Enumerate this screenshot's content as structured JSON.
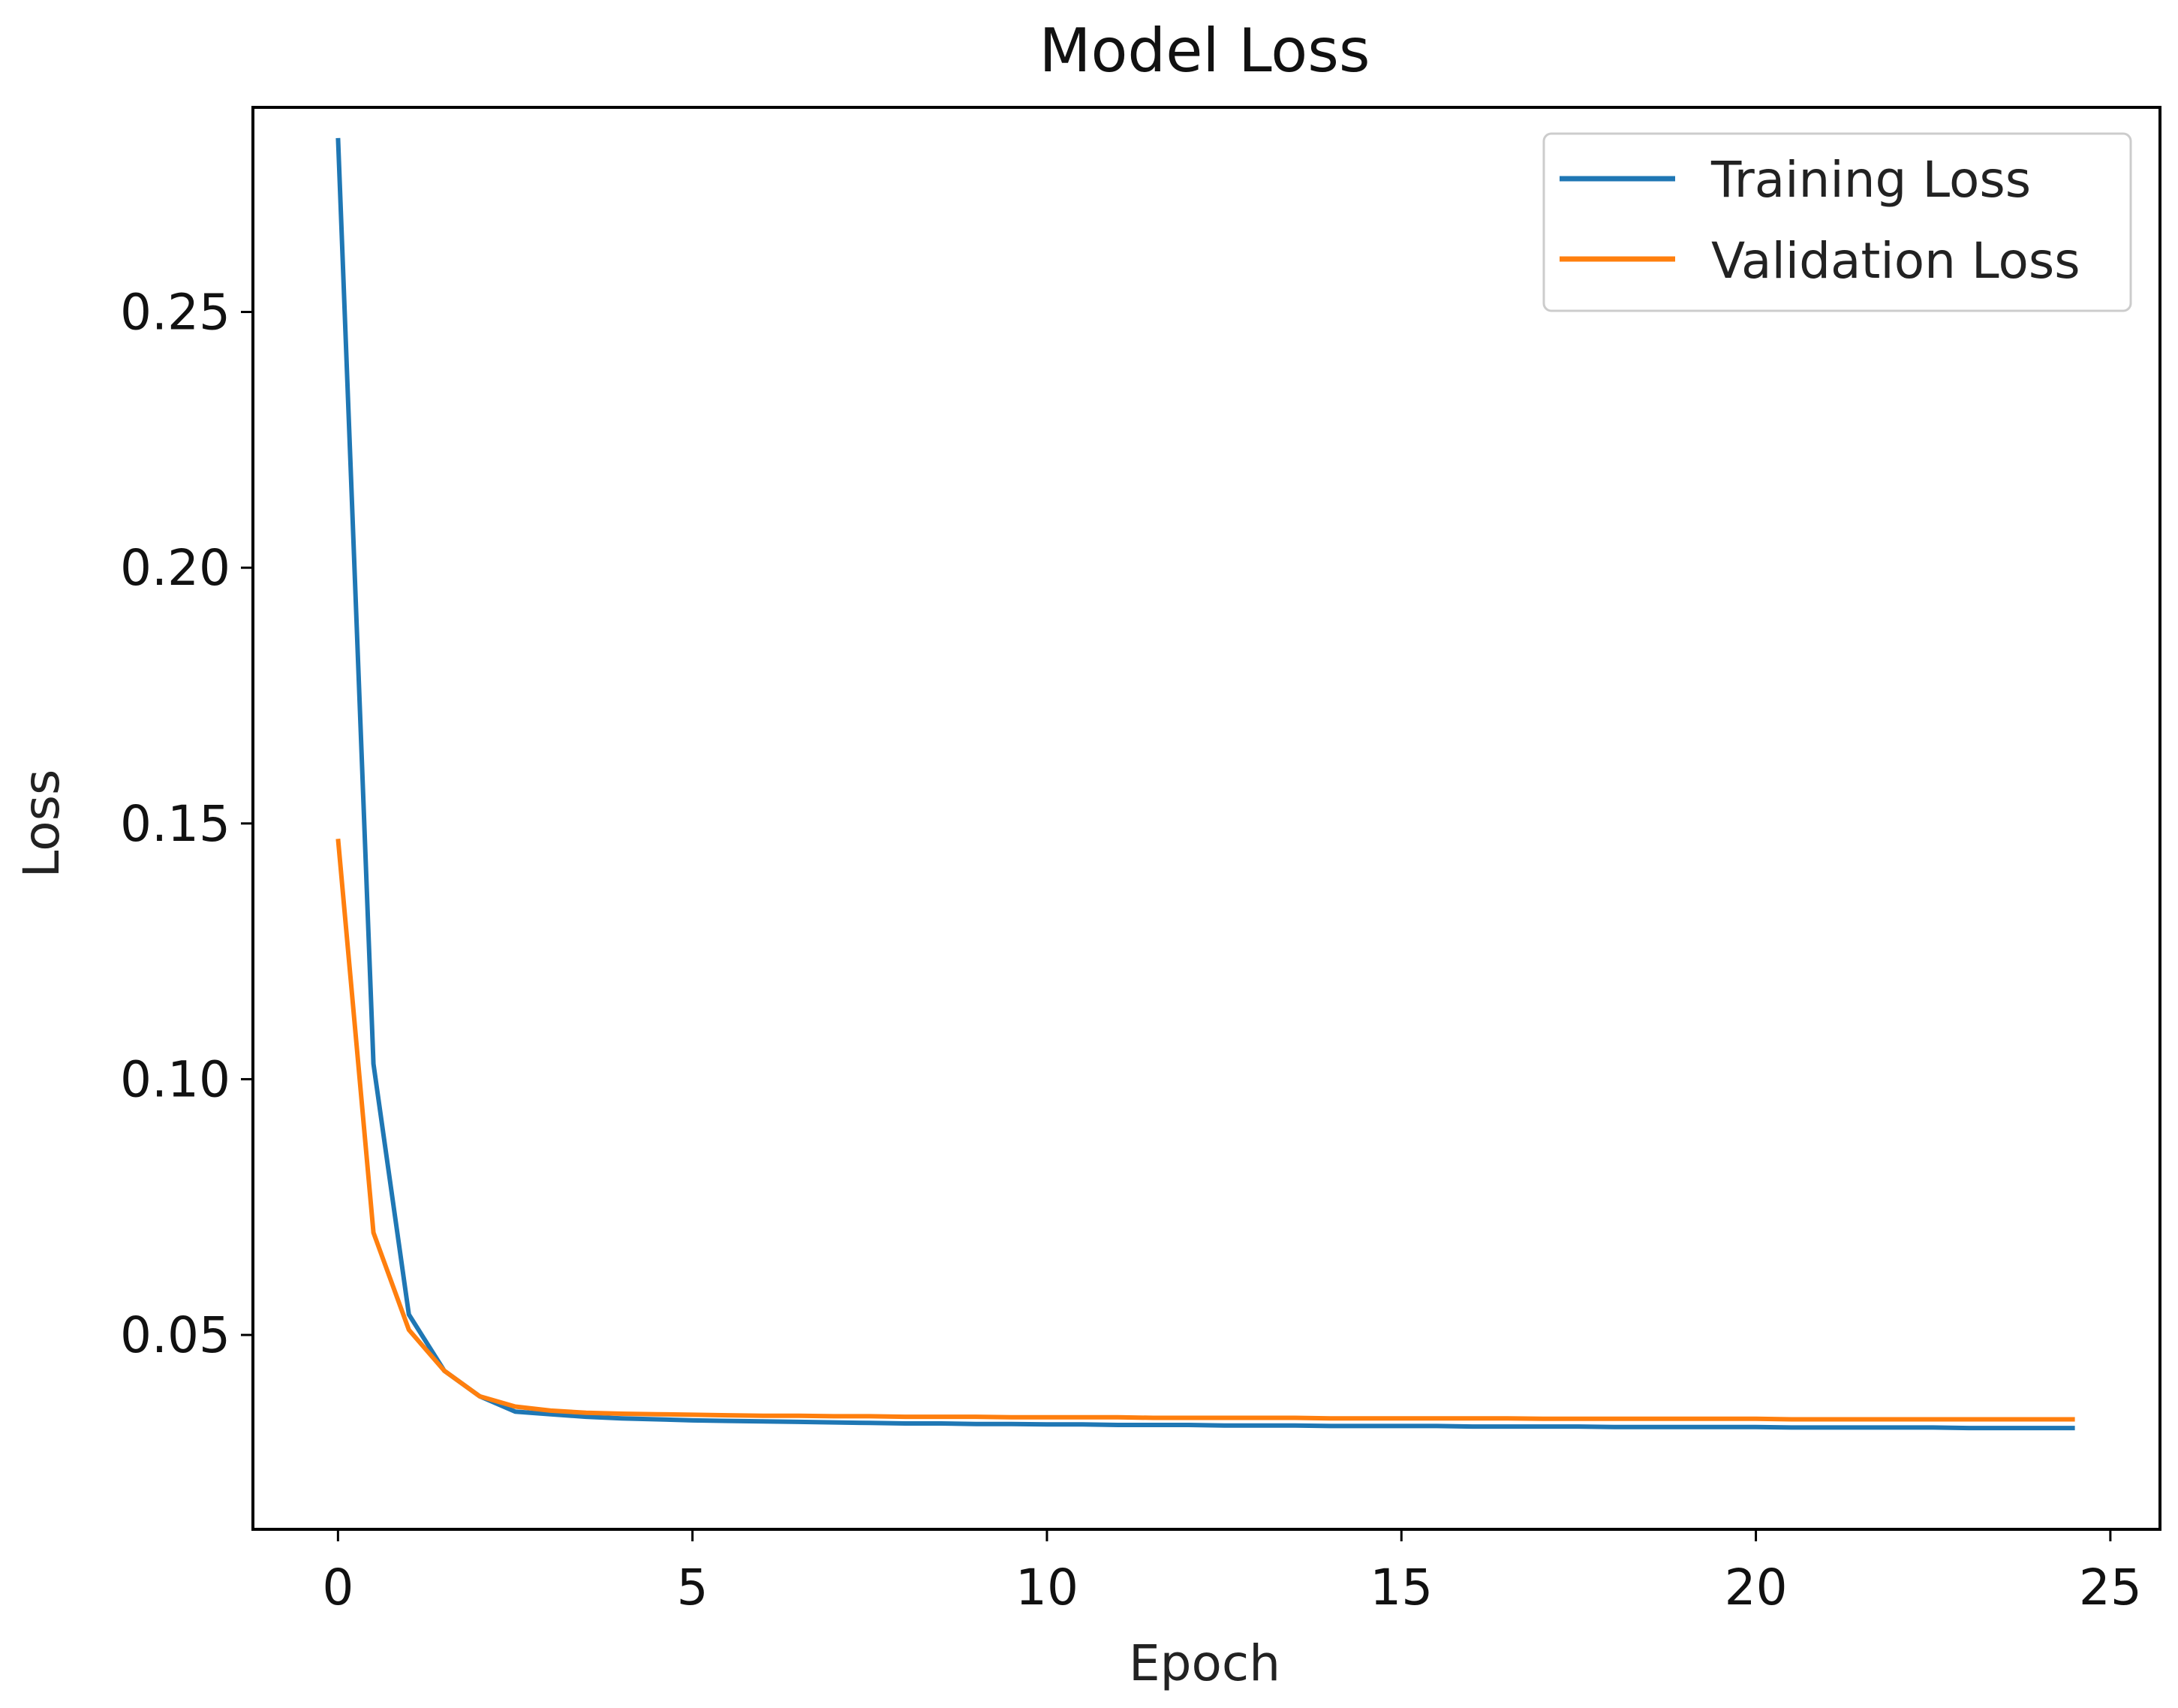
{
  "chart_data": {
    "type": "line",
    "title": "Model Loss",
    "xlabel": "Epoch",
    "ylabel": "Loss",
    "xlim": [
      -1.2,
      25.7
    ],
    "ylim": [
      0.012,
      0.29
    ],
    "xticks": [
      0,
      5,
      10,
      15,
      20,
      25
    ],
    "xtick_labels": [
      "0",
      "5",
      "10",
      "15",
      "20",
      "25"
    ],
    "yticks": [
      0.05,
      0.1,
      0.15,
      0.2,
      0.25
    ],
    "ytick_labels": [
      "0.05",
      "0.10",
      "0.15",
      "0.20",
      "0.25"
    ],
    "grid": false,
    "legend_position": "top-right",
    "x": [
      0,
      0.5,
      1,
      1.5,
      2,
      2.5,
      3,
      3.5,
      4,
      4.5,
      5,
      5.5,
      6,
      6.5,
      7,
      7.5,
      8,
      8.5,
      9,
      9.5,
      10,
      10.5,
      11,
      11.5,
      12,
      12.5,
      13,
      13.5,
      14,
      14.5,
      15,
      15.5,
      16,
      16.5,
      17,
      17.5,
      18,
      18.5,
      19,
      19.5,
      20,
      20.5,
      21,
      21.5,
      22,
      22.5,
      23,
      23.5,
      24,
      24.5
    ],
    "series": [
      {
        "name": "Training Loss",
        "color": "#1f77b4",
        "values": [
          0.284,
          0.103,
          0.054,
          0.043,
          0.038,
          0.035,
          0.0345,
          0.034,
          0.0337,
          0.0335,
          0.0333,
          0.0332,
          0.0331,
          0.033,
          0.0329,
          0.0328,
          0.0327,
          0.0327,
          0.0326,
          0.0326,
          0.0325,
          0.0325,
          0.0324,
          0.0324,
          0.0324,
          0.0323,
          0.0323,
          0.0323,
          0.0322,
          0.0322,
          0.0322,
          0.0322,
          0.0321,
          0.0321,
          0.0321,
          0.0321,
          0.032,
          0.032,
          0.032,
          0.032,
          0.032,
          0.0319,
          0.0319,
          0.0319,
          0.0319,
          0.0319,
          0.0318,
          0.0318,
          0.0318,
          0.0318
        ]
      },
      {
        "name": "Validation Loss",
        "color": "#ff7f0e",
        "values": [
          0.147,
          0.07,
          0.051,
          0.043,
          0.038,
          0.036,
          0.0352,
          0.0348,
          0.0346,
          0.0345,
          0.0344,
          0.0343,
          0.0342,
          0.0342,
          0.0341,
          0.0341,
          0.034,
          0.034,
          0.034,
          0.0339,
          0.0339,
          0.0339,
          0.0339,
          0.0338,
          0.0338,
          0.0338,
          0.0338,
          0.0338,
          0.0337,
          0.0337,
          0.0337,
          0.0337,
          0.0337,
          0.0337,
          0.0336,
          0.0336,
          0.0336,
          0.0336,
          0.0336,
          0.0336,
          0.0336,
          0.0335,
          0.0335,
          0.0335,
          0.0335,
          0.0335,
          0.0335,
          0.0335,
          0.0335,
          0.0335
        ]
      }
    ]
  }
}
